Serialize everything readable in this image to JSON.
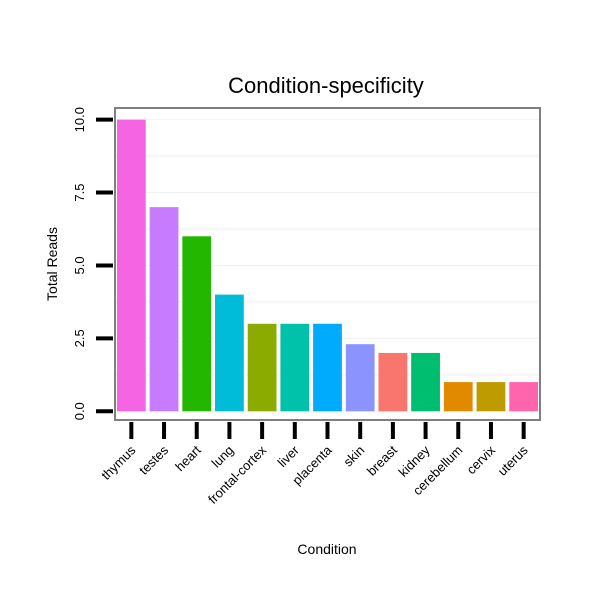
{
  "chart_data": {
    "type": "bar",
    "title": "Condition-specificity",
    "xlabel": "Condition",
    "ylabel": "Total Reads",
    "ylim": [
      -0.3,
      10.4
    ],
    "yticks": [
      "0.0",
      "2.5",
      "5.0",
      "7.5",
      "10.0"
    ],
    "ytick_values": [
      0,
      2.5,
      5,
      7.5,
      10
    ],
    "grid": true,
    "categories": [
      "thymus",
      "testes",
      "heart",
      "lung",
      "frontal-cortex",
      "liver",
      "placenta",
      "skin",
      "breast",
      "kidney",
      "cerebellum",
      "cervix",
      "uterus"
    ],
    "values": [
      10,
      7,
      6,
      4,
      3,
      3,
      3,
      2.3,
      2,
      2,
      1,
      1,
      1
    ],
    "colors": [
      "#F564E3",
      "#C77CFF",
      "#24B700",
      "#00BCD8",
      "#8CAB00",
      "#00C1AA",
      "#00ABFD",
      "#8B93FF",
      "#F8766D",
      "#00BE70",
      "#E18A00",
      "#BE9C00",
      "#FF65AC"
    ]
  }
}
